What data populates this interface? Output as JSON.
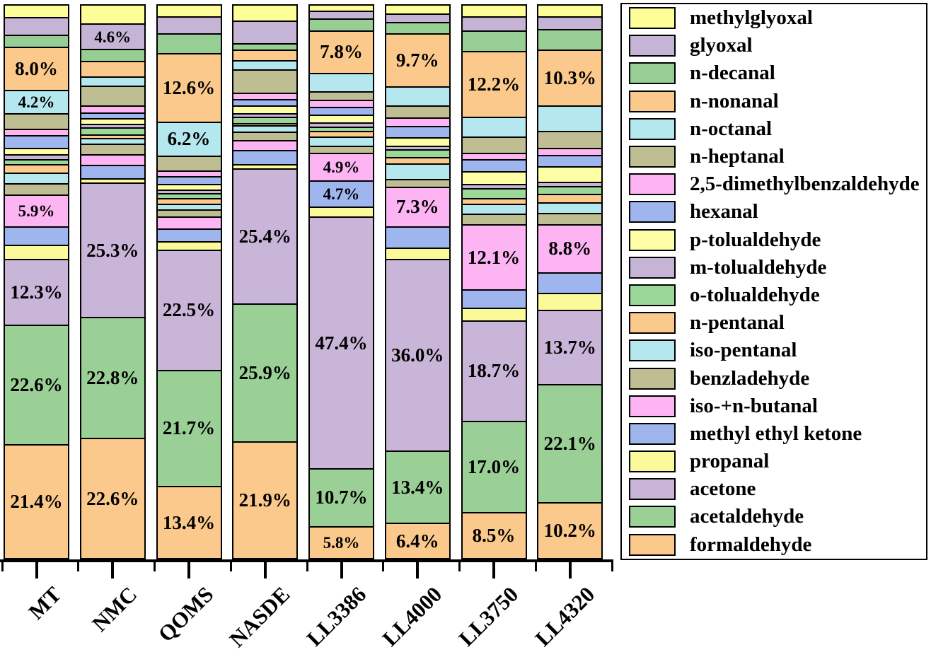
{
  "chart_data": {
    "type": "bar",
    "variant": "100-percent-stacked-column",
    "title": "",
    "value_unit": "percent",
    "ylim": [
      0,
      100
    ],
    "gridlines": false,
    "y_axis_visible": false,
    "legend_position": "right",
    "stacking_note": "series are listed top-to-bottom as stacked in each column and as shown in the legend; formaldehyde is the bottom segment",
    "categories": [
      "MT",
      "NMC",
      "QOMS",
      "NASDE",
      "LL3386",
      "LL4000",
      "LL3750",
      "LL4320"
    ],
    "series": [
      {
        "name": "methylglyoxal",
        "color": "#FEFE99",
        "textured": false,
        "values": [
          2.2,
          3.4,
          2.0,
          2.8,
          0.9,
          1.5,
          2.0,
          2.0
        ],
        "labels": [
          null,
          null,
          null,
          null,
          null,
          null,
          null,
          null
        ]
      },
      {
        "name": "glyoxal",
        "color": "#C6B4D6",
        "textured": true,
        "values": [
          3.0,
          4.6,
          3.0,
          4.0,
          1.2,
          1.3,
          2.4,
          2.1
        ],
        "labels": [
          null,
          "4.6%",
          null,
          null,
          null,
          null,
          null,
          null
        ]
      },
      {
        "name": "n-decanal",
        "color": "#96CE94",
        "textured": true,
        "values": [
          2.1,
          2.0,
          3.5,
          1.0,
          2.0,
          1.9,
          3.6,
          3.6
        ],
        "labels": [
          null,
          null,
          null,
          null,
          null,
          null,
          null,
          null
        ]
      },
      {
        "name": "n-nonanal",
        "color": "#FBC98C",
        "textured": false,
        "values": [
          8.0,
          2.6,
          12.6,
          1.7,
          7.8,
          9.7,
          12.2,
          10.3
        ],
        "labels": [
          "8.0%",
          null,
          "12.6%",
          null,
          "7.8%",
          "9.7%",
          "12.2%",
          "10.3%"
        ]
      },
      {
        "name": "n-octanal",
        "color": "#B4E7EE",
        "textured": false,
        "values": [
          4.2,
          1.6,
          6.2,
          1.5,
          3.2,
          3.4,
          3.5,
          4.5
        ],
        "labels": [
          "4.2%",
          null,
          "6.2%",
          null,
          null,
          null,
          null,
          null
        ]
      },
      {
        "name": "n-heptanal",
        "color": "#BFBE93",
        "textured": false,
        "values": [
          2.7,
          3.5,
          2.6,
          4.2,
          1.4,
          2.0,
          2.8,
          3.0
        ],
        "labels": [
          null,
          null,
          null,
          null,
          null,
          null,
          null,
          null
        ]
      },
      {
        "name": "2,5-dimethylbenzaldehyde",
        "color": "#FCB4F3",
        "textured": false,
        "values": [
          0.9,
          1.0,
          0.7,
          0.9,
          1.0,
          1.4,
          0.9,
          1.0
        ],
        "labels": [
          null,
          null,
          null,
          null,
          null,
          null,
          null,
          null
        ]
      },
      {
        "name": "hexanal",
        "color": "#9EB5EE",
        "textured": false,
        "values": [
          2.1,
          0.8,
          1.3,
          0.9,
          1.3,
          1.8,
          2.0,
          1.9
        ],
        "labels": [
          null,
          null,
          null,
          null,
          null,
          null,
          null,
          null
        ]
      },
      {
        "name": "p-tolualdehyde",
        "color": "#FEFEA6",
        "textured": false,
        "values": [
          1.0,
          0.9,
          0.8,
          1.3,
          1.2,
          1.4,
          2.2,
          2.6
        ],
        "labels": [
          null,
          null,
          null,
          null,
          null,
          null,
          null,
          null
        ]
      },
      {
        "name": "m-tolualdehyde",
        "color": "#C6B4D6",
        "textured": false,
        "values": [
          0.7,
          0.3,
          0.4,
          0.4,
          0.5,
          0.4,
          0.5,
          0.6
        ],
        "labels": [
          null,
          null,
          null,
          null,
          null,
          null,
          null,
          null
        ]
      },
      {
        "name": "o-tolualdehyde",
        "color": "#9CD79A",
        "textured": true,
        "values": [
          0.6,
          1.1,
          0.7,
          0.9,
          0.5,
          1.2,
          1.7,
          1.2
        ],
        "labels": [
          null,
          null,
          null,
          null,
          null,
          null,
          null,
          null
        ]
      },
      {
        "name": "n-pentanal",
        "color": "#FBC98C",
        "textured": false,
        "values": [
          1.4,
          0.4,
          0.7,
          0.2,
          0.8,
          0.9,
          0.7,
          1.3
        ],
        "labels": [
          null,
          null,
          null,
          null,
          null,
          null,
          null,
          null
        ]
      },
      {
        "name": "iso-pentanal",
        "color": "#B4E7EE",
        "textured": false,
        "values": [
          1.7,
          0.9,
          0.9,
          0.9,
          1.5,
          2.6,
          1.7,
          1.7
        ],
        "labels": [
          null,
          null,
          null,
          null,
          null,
          null,
          null,
          null
        ]
      },
      {
        "name": "benzladehyde",
        "color": "#BFBE93",
        "textured": false,
        "values": [
          1.9,
          1.7,
          1.0,
          1.3,
          1.1,
          1.2,
          1.7,
          1.9
        ],
        "labels": [
          null,
          null,
          null,
          null,
          null,
          null,
          null,
          null
        ]
      },
      {
        "name": "iso-+n-butanal",
        "color": "#FCB4F3",
        "textured": false,
        "values": [
          5.9,
          1.8,
          2.0,
          1.7,
          4.9,
          7.3,
          12.1,
          8.8
        ],
        "labels": [
          "5.9%",
          null,
          null,
          null,
          "4.9%",
          "7.3%",
          "12.1%",
          "8.8%"
        ]
      },
      {
        "name": "methyl ethyl ketone",
        "color": "#9EB5EE",
        "textured": false,
        "values": [
          3.2,
          2.2,
          2.2,
          2.3,
          4.7,
          3.8,
          3.1,
          3.6
        ],
        "labels": [
          null,
          null,
          null,
          null,
          "4.7%",
          null,
          null,
          null
        ]
      },
      {
        "name": "propanal",
        "color": "#FAFA9B",
        "textured": false,
        "values": [
          2.4,
          0.6,
          1.3,
          0.6,
          1.7,
          1.8,
          2.2,
          2.9
        ],
        "labels": [
          null,
          null,
          null,
          null,
          null,
          null,
          null,
          null
        ]
      },
      {
        "name": "acetone",
        "color": "#C8B5D8",
        "textured": true,
        "values": [
          12.3,
          25.3,
          22.5,
          25.4,
          47.4,
          36.0,
          18.7,
          13.7
        ],
        "labels": [
          "12.3%",
          "25.3%",
          "22.5%",
          "25.4%",
          "47.4%",
          "36.0%",
          "18.7%",
          "13.7%"
        ]
      },
      {
        "name": "acetaldehyde",
        "color": "#9ACF96",
        "textured": true,
        "values": [
          22.6,
          22.8,
          21.7,
          25.9,
          10.7,
          13.4,
          17.0,
          22.1
        ],
        "labels": [
          "22.6%",
          "22.8%",
          "21.7%",
          "25.9%",
          "10.7%",
          "13.4%",
          "17.0%",
          "22.1%"
        ]
      },
      {
        "name": "formaldehyde",
        "color": "#FBC98C",
        "textured": false,
        "values": [
          21.4,
          22.6,
          13.4,
          21.9,
          5.8,
          6.4,
          8.5,
          10.2
        ],
        "labels": [
          "21.4%",
          "22.6%",
          "13.4%",
          "21.9%",
          "5.8%",
          "6.4%",
          "8.5%",
          "10.2%"
        ]
      }
    ],
    "axis": {
      "x_tick_labels": [
        "MT",
        "NMC",
        "QOMS",
        "NASDE",
        "LL3386",
        "LL4000",
        "LL3750",
        "LL4320"
      ],
      "x_label_rotation_deg": -45
    }
  }
}
